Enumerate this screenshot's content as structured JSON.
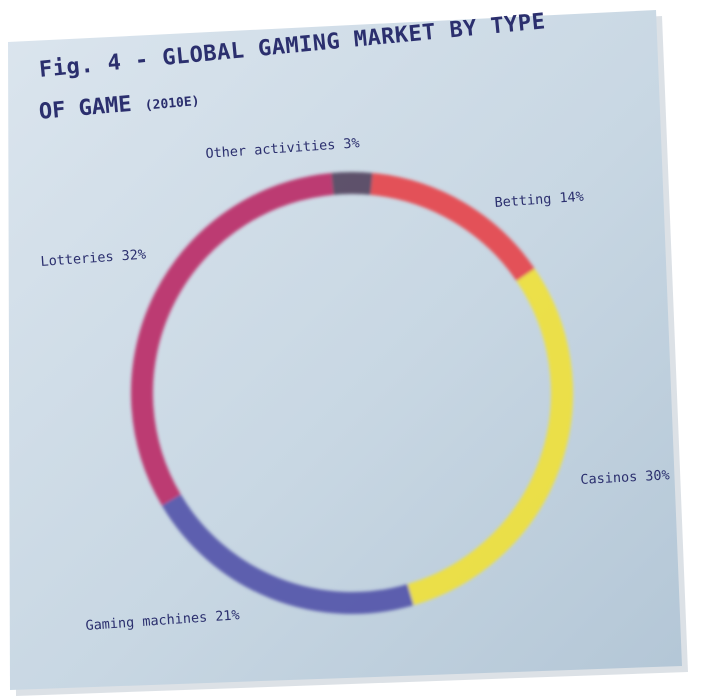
{
  "figure": {
    "title_line1": "Fig. 4 - GLOBAL GAMING MARKET BY TYPE",
    "title_line2": "OF GAME",
    "title_suffix": "(2010E)"
  },
  "colors": {
    "card_light": "#d6e1ea",
    "card_dark": "#b7c9d8",
    "text": "#2b2f6e"
  },
  "chart_data": {
    "type": "pie",
    "style": "donut",
    "title": "Fig. 4 - GLOBAL GAMING MARKET BY TYPE OF GAME (2010E)",
    "unit": "%",
    "slices": [
      {
        "label": "Other activities 3%",
        "category": "Other activities",
        "value": 3,
        "color": "#4a3a55"
      },
      {
        "label": "Betting 14%",
        "category": "Betting",
        "value": 14,
        "color": "#e8383f"
      },
      {
        "label": "Casinos 30%",
        "category": "Casinos",
        "value": 30,
        "color": "#f2e230"
      },
      {
        "label": "Gaming machines 21%",
        "category": "Gaming machines",
        "value": 21,
        "color": "#4b4aa6"
      },
      {
        "label": "Lotteries 32%",
        "category": "Lotteries",
        "value": 32,
        "color": "#b8205e"
      }
    ]
  }
}
